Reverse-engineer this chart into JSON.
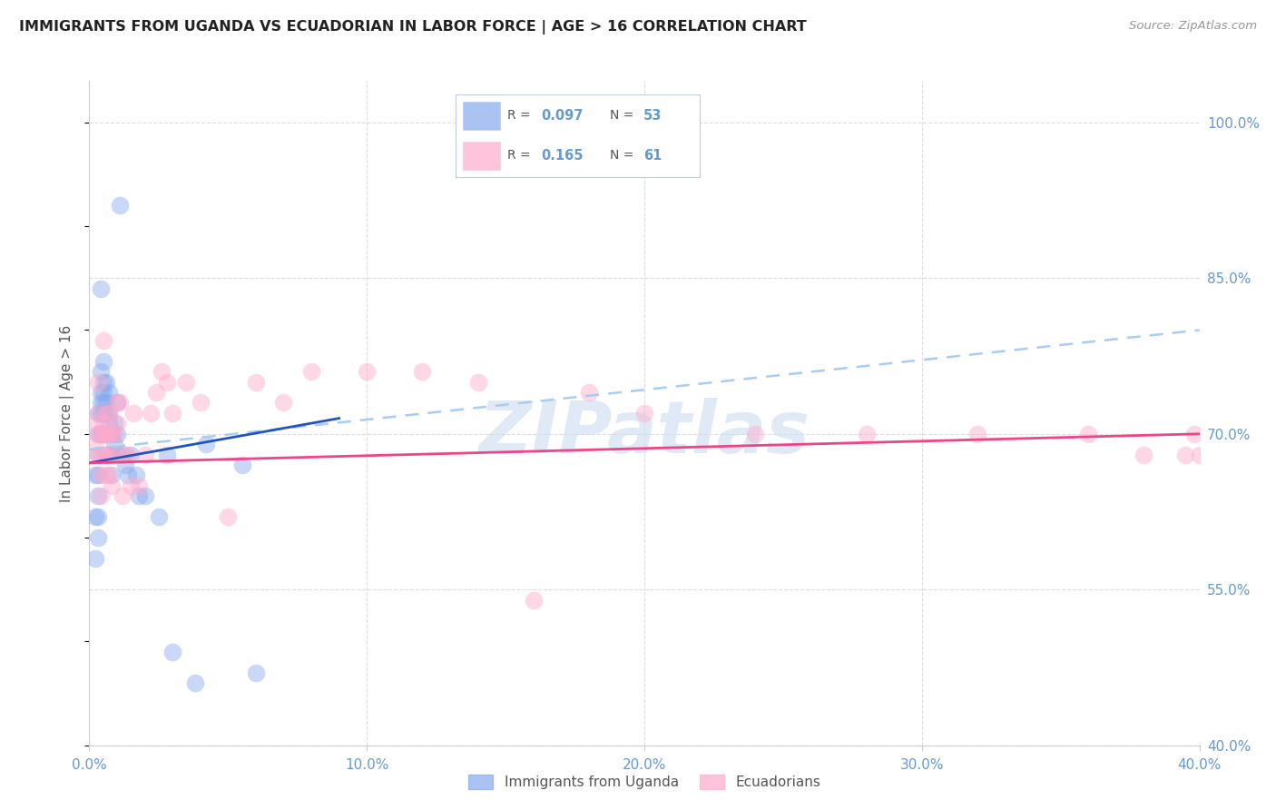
{
  "title": "IMMIGRANTS FROM UGANDA VS ECUADORIAN IN LABOR FORCE | AGE > 16 CORRELATION CHART",
  "source": "Source: ZipAtlas.com",
  "ylabel": "In Labor Force | Age > 16",
  "right_yticks": [
    "100.0%",
    "85.0%",
    "70.0%",
    "55.0%",
    "40.0%"
  ],
  "right_ytick_vals": [
    1.0,
    0.85,
    0.7,
    0.55,
    0.4
  ],
  "xlim": [
    0.0,
    0.4
  ],
  "ylim": [
    0.4,
    1.04
  ],
  "legend_r1": "0.097",
  "legend_n1": "53",
  "legend_r2": "0.165",
  "legend_n2": "61",
  "title_color": "#222222",
  "blue_scatter_color": "#88aaee",
  "pink_scatter_color": "#ffaacc",
  "blue_line_color": "#2255bb",
  "pink_line_color": "#ee4488",
  "dashed_line_color": "#aaccee",
  "grid_color": "#dddddd",
  "axis_label_color": "#6699cc",
  "watermark": "ZIPatlas",
  "watermark_color": "#ccddf0",
  "legend_box_color": "#eeeeee",
  "uganda_x": [
    0.002,
    0.002,
    0.002,
    0.003,
    0.003,
    0.003,
    0.003,
    0.003,
    0.003,
    0.003,
    0.004,
    0.004,
    0.004,
    0.004,
    0.004,
    0.004,
    0.005,
    0.005,
    0.005,
    0.005,
    0.005,
    0.006,
    0.006,
    0.006,
    0.006,
    0.006,
    0.007,
    0.007,
    0.007,
    0.007,
    0.008,
    0.008,
    0.008,
    0.009,
    0.009,
    0.01,
    0.01,
    0.01,
    0.011,
    0.012,
    0.013,
    0.014,
    0.015,
    0.017,
    0.018,
    0.02,
    0.025,
    0.028,
    0.03,
    0.038,
    0.042,
    0.055,
    0.06
  ],
  "uganda_y": [
    0.66,
    0.62,
    0.58,
    0.72,
    0.7,
    0.68,
    0.66,
    0.64,
    0.62,
    0.6,
    0.84,
    0.76,
    0.74,
    0.73,
    0.72,
    0.7,
    0.77,
    0.75,
    0.74,
    0.73,
    0.72,
    0.75,
    0.73,
    0.72,
    0.7,
    0.68,
    0.74,
    0.72,
    0.71,
    0.68,
    0.7,
    0.68,
    0.66,
    0.71,
    0.69,
    0.73,
    0.7,
    0.68,
    0.92,
    0.68,
    0.67,
    0.66,
    0.68,
    0.66,
    0.64,
    0.64,
    0.62,
    0.68,
    0.49,
    0.46,
    0.69,
    0.67,
    0.47
  ],
  "ecuador_x": [
    0.002,
    0.002,
    0.003,
    0.003,
    0.003,
    0.003,
    0.004,
    0.004,
    0.004,
    0.004,
    0.005,
    0.005,
    0.005,
    0.005,
    0.006,
    0.006,
    0.006,
    0.006,
    0.007,
    0.007,
    0.007,
    0.007,
    0.008,
    0.008,
    0.009,
    0.009,
    0.01,
    0.01,
    0.011,
    0.012,
    0.013,
    0.014,
    0.015,
    0.016,
    0.018,
    0.02,
    0.022,
    0.024,
    0.026,
    0.028,
    0.03,
    0.035,
    0.04,
    0.05,
    0.06,
    0.07,
    0.08,
    0.1,
    0.12,
    0.14,
    0.16,
    0.18,
    0.2,
    0.24,
    0.28,
    0.32,
    0.36,
    0.38,
    0.395,
    0.398,
    0.4
  ],
  "ecuador_y": [
    0.71,
    0.69,
    0.75,
    0.72,
    0.7,
    0.68,
    0.7,
    0.68,
    0.66,
    0.64,
    0.79,
    0.71,
    0.7,
    0.68,
    0.72,
    0.7,
    0.68,
    0.66,
    0.72,
    0.7,
    0.68,
    0.66,
    0.7,
    0.65,
    0.7,
    0.68,
    0.73,
    0.71,
    0.73,
    0.64,
    0.68,
    0.68,
    0.65,
    0.72,
    0.65,
    0.68,
    0.72,
    0.74,
    0.76,
    0.75,
    0.72,
    0.75,
    0.73,
    0.62,
    0.75,
    0.73,
    0.76,
    0.76,
    0.76,
    0.75,
    0.54,
    0.74,
    0.72,
    0.7,
    0.7,
    0.7,
    0.7,
    0.68,
    0.68,
    0.7,
    0.68
  ],
  "uganda_line_x0": 0.0,
  "uganda_line_x1": 0.09,
  "uganda_line_y0": 0.672,
  "uganda_line_y1": 0.715,
  "ecuador_line_x0": 0.0,
  "ecuador_line_x1": 0.4,
  "ecuador_line_y0": 0.672,
  "ecuador_line_y1": 0.7,
  "dashed_line_x0": 0.0,
  "dashed_line_x1": 0.4,
  "dashed_line_y0": 0.685,
  "dashed_line_y1": 0.8
}
